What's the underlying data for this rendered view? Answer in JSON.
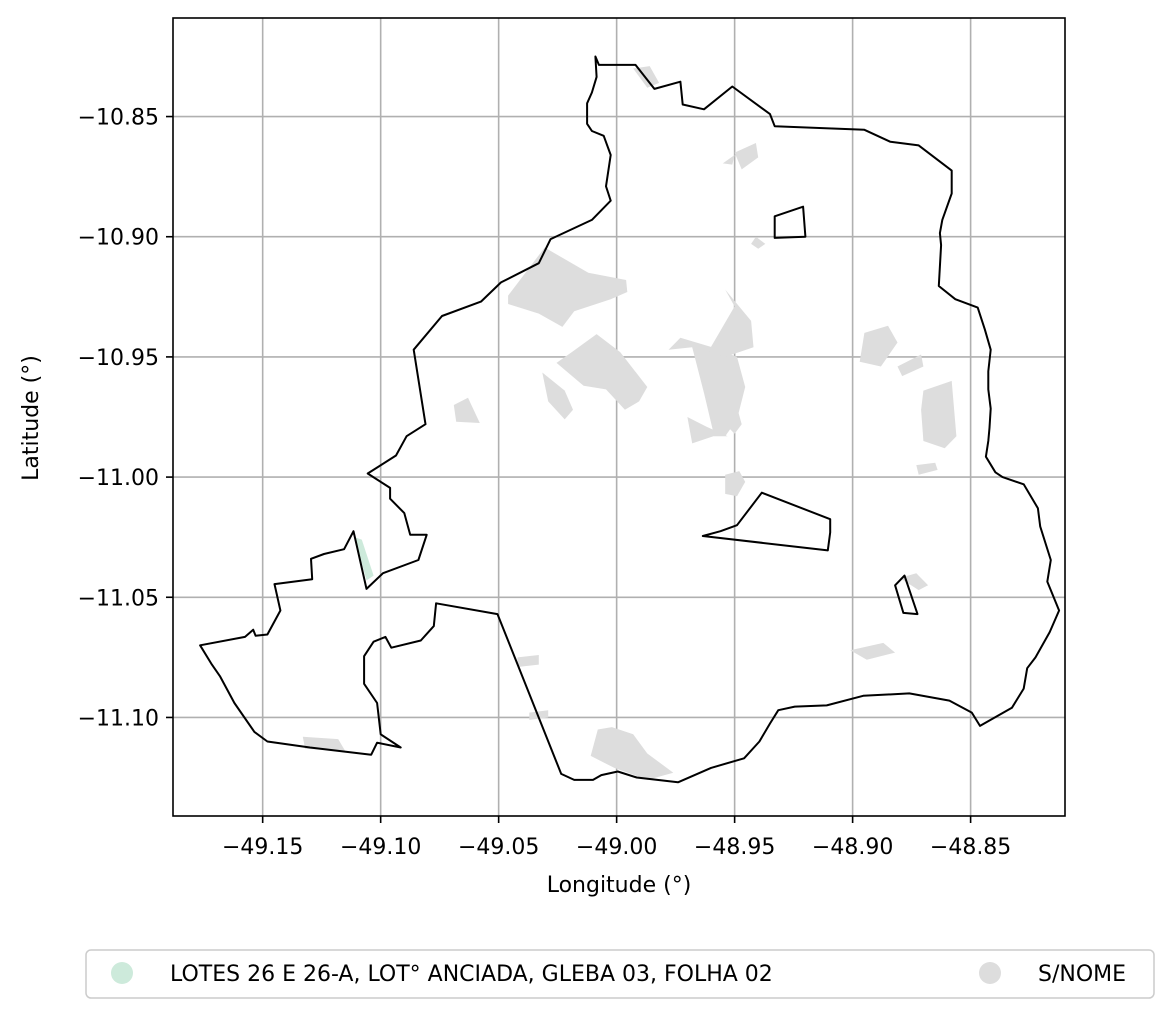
{
  "map": {
    "xlabel": "Longitude (°)",
    "ylabel": "Latitude (°)",
    "xlim": [
      -49.188,
      -48.81
    ],
    "ylim": [
      -11.141,
      -10.809
    ],
    "xticks": [
      {
        "value": -49.15,
        "label": "−49.15"
      },
      {
        "value": -49.1,
        "label": "−49.10"
      },
      {
        "value": -49.05,
        "label": "−49.05"
      },
      {
        "value": -49.0,
        "label": "−49.00"
      },
      {
        "value": -48.95,
        "label": "−48.95"
      },
      {
        "value": -48.9,
        "label": "−48.90"
      },
      {
        "value": -48.85,
        "label": "−48.85"
      }
    ],
    "yticks": [
      {
        "value": -10.85,
        "label": "−10.85"
      },
      {
        "value": -10.9,
        "label": "−10.90"
      },
      {
        "value": -10.95,
        "label": "−10.95"
      },
      {
        "value": -11.0,
        "label": "−11.00"
      },
      {
        "value": -11.05,
        "label": "−11.05"
      },
      {
        "value": -11.1,
        "label": "−11.10"
      }
    ],
    "grid": true,
    "colors": {
      "boundary": "#000000",
      "parcel_gray": "#dddddd",
      "parcel_green": "#cdeadb",
      "grid": "#b0b0b0"
    },
    "legend": {
      "placement": "bottom",
      "items": [
        {
          "label": "LOTES 26 E  26-A, LOT° ANCIADA, GLEBA 03, FOLHA 02",
          "color": "#cdeadb"
        },
        {
          "label": "S/NOME",
          "color": "#dddddd"
        }
      ]
    },
    "boundary": [
      [
        -49.009,
        -10.825
      ],
      [
        -49.0075,
        -10.8285
      ],
      [
        -48.992,
        -10.8285
      ],
      [
        -48.984,
        -10.8385
      ],
      [
        -48.973,
        -10.8355
      ],
      [
        -48.972,
        -10.845
      ],
      [
        -48.963,
        -10.847
      ],
      [
        -48.951,
        -10.8375
      ],
      [
        -48.935,
        -10.849
      ],
      [
        -48.933,
        -10.854
      ],
      [
        -48.895,
        -10.8555
      ],
      [
        -48.884,
        -10.8605
      ],
      [
        -48.872,
        -10.862
      ],
      [
        -48.858,
        -10.8725
      ],
      [
        -48.858,
        -10.882
      ],
      [
        -48.862,
        -10.893
      ],
      [
        -48.863,
        -10.8985
      ],
      [
        -48.8625,
        -10.9035
      ],
      [
        -48.8635,
        -10.9205
      ],
      [
        -48.8565,
        -10.926
      ],
      [
        -48.847,
        -10.9295
      ],
      [
        -48.844,
        -10.9385
      ],
      [
        -48.8415,
        -10.947
      ],
      [
        -48.8425,
        -10.956
      ],
      [
        -48.8425,
        -10.9635
      ],
      [
        -48.8415,
        -10.9715
      ],
      [
        -48.842,
        -10.9795
      ],
      [
        -48.8425,
        -10.985
      ],
      [
        -48.8435,
        -10.9915
      ],
      [
        -48.8395,
        -10.998
      ],
      [
        -48.8365,
        -11.0
      ],
      [
        -48.8275,
        -11.003
      ],
      [
        -48.8215,
        -11.013
      ],
      [
        -48.8205,
        -11.0205
      ],
      [
        -48.816,
        -11.0345
      ],
      [
        -48.8175,
        -11.0435
      ],
      [
        -48.8125,
        -11.0555
      ],
      [
        -48.8165,
        -11.0645
      ],
      [
        -48.8225,
        -11.075
      ],
      [
        -48.826,
        -11.0795
      ],
      [
        -48.8275,
        -11.088
      ],
      [
        -48.8325,
        -11.096
      ],
      [
        -48.846,
        -11.1035
      ],
      [
        -48.8495,
        -11.098
      ],
      [
        -48.859,
        -11.093
      ],
      [
        -48.876,
        -11.09
      ],
      [
        -48.8955,
        -11.091
      ],
      [
        -48.911,
        -11.095
      ],
      [
        -48.9245,
        -11.0955
      ],
      [
        -48.9315,
        -11.097
      ],
      [
        -48.935,
        -11.1025
      ],
      [
        -48.9395,
        -11.11
      ],
      [
        -48.946,
        -11.117
      ],
      [
        -48.96,
        -11.121
      ],
      [
        -48.974,
        -11.127
      ],
      [
        -48.9915,
        -11.125
      ],
      [
        -48.9995,
        -11.1225
      ],
      [
        -49.0065,
        -11.124
      ],
      [
        -49.01,
        -11.126
      ],
      [
        -49.018,
        -11.126
      ],
      [
        -49.0235,
        -11.1235
      ],
      [
        -49.0505,
        -11.057
      ],
      [
        -49.0765,
        -11.0525
      ],
      [
        -49.0775,
        -11.062
      ],
      [
        -49.083,
        -11.068
      ],
      [
        -49.0955,
        -11.071
      ],
      [
        -49.098,
        -11.0665
      ],
      [
        -49.103,
        -11.0685
      ],
      [
        -49.107,
        -11.0745
      ],
      [
        -49.107,
        -11.086
      ],
      [
        -49.1015,
        -11.094
      ],
      [
        -49.1,
        -11.107
      ],
      [
        -49.0915,
        -11.1125
      ],
      [
        -49.1015,
        -11.1105
      ],
      [
        -49.104,
        -11.1155
      ],
      [
        -49.13,
        -11.1125
      ],
      [
        -49.148,
        -11.11
      ],
      [
        -49.1535,
        -11.106
      ],
      [
        -49.162,
        -11.094
      ],
      [
        -49.168,
        -11.083
      ],
      [
        -49.1715,
        -11.078
      ],
      [
        -49.1765,
        -11.07
      ],
      [
        -49.1575,
        -11.0665
      ],
      [
        -49.154,
        -11.0635
      ],
      [
        -49.153,
        -11.066
      ],
      [
        -49.148,
        -11.0655
      ],
      [
        -49.1425,
        -11.0555
      ],
      [
        -49.145,
        -11.0445
      ],
      [
        -49.129,
        -11.0425
      ],
      [
        -49.1295,
        -11.034
      ],
      [
        -49.124,
        -11.032
      ],
      [
        -49.1155,
        -11.03
      ],
      [
        -49.1115,
        -11.0225
      ],
      [
        -49.106,
        -11.0465
      ],
      [
        -49.099,
        -11.04
      ],
      [
        -49.084,
        -11.0345
      ],
      [
        -49.0805,
        -11.024
      ],
      [
        -49.0875,
        -11.024
      ],
      [
        -49.09,
        -11.015
      ],
      [
        -49.096,
        -11.009
      ],
      [
        -49.096,
        -11.0045
      ],
      [
        -49.1055,
        -10.9985
      ],
      [
        -49.0935,
        -10.991
      ],
      [
        -49.089,
        -10.983
      ],
      [
        -49.081,
        -10.978
      ],
      [
        -49.086,
        -10.947
      ],
      [
        -49.074,
        -10.933
      ],
      [
        -49.0575,
        -10.927
      ],
      [
        -49.049,
        -10.919
      ],
      [
        -49.033,
        -10.911
      ],
      [
        -49.028,
        -10.901
      ],
      [
        -49.0105,
        -10.893
      ],
      [
        -49.0025,
        -10.885
      ],
      [
        -49.0045,
        -10.879
      ],
      [
        -49.0025,
        -10.866
      ],
      [
        -49.0055,
        -10.858
      ],
      [
        -49.0105,
        -10.856
      ],
      [
        -49.0125,
        -10.853
      ],
      [
        -49.0125,
        -10.8445
      ],
      [
        -49.0105,
        -10.84
      ],
      [
        -49.0085,
        -10.8335
      ],
      [
        -49.009,
        -10.825
      ]
    ],
    "inner_polygons": [
      [
        [
          -48.933,
          -10.8915
        ],
        [
          -48.921,
          -10.8875
        ],
        [
          -48.92,
          -10.9
        ],
        [
          -48.933,
          -10.9005
        ]
      ],
      [
        [
          -48.9385,
          -11.0065
        ],
        [
          -48.9095,
          -11.0175
        ],
        [
          -48.9095,
          -11.023
        ],
        [
          -48.9105,
          -11.0305
        ],
        [
          -48.9635,
          -11.0245
        ],
        [
          -48.956,
          -11.0225
        ],
        [
          -48.949,
          -11.02
        ]
      ],
      [
        [
          -48.882,
          -11.045
        ],
        [
          -48.878,
          -11.041
        ],
        [
          -48.8725,
          -11.057
        ],
        [
          -48.8785,
          -11.0565
        ]
      ]
    ],
    "parcels_gray": [
      [
        [
          -49.046,
          -10.9245
        ],
        [
          -49.0305,
          -10.9045
        ],
        [
          -49.012,
          -10.915
        ],
        [
          -48.996,
          -10.918
        ],
        [
          -48.9955,
          -10.923
        ],
        [
          -49.0025,
          -10.926
        ],
        [
          -49.018,
          -10.931
        ],
        [
          -49.023,
          -10.9375
        ],
        [
          -49.033,
          -10.932
        ],
        [
          -49.046,
          -10.928
        ]
      ],
      [
        [
          -49.0255,
          -10.9525
        ],
        [
          -49.019,
          -10.948
        ],
        [
          -49.0085,
          -10.9405
        ],
        [
          -48.9985,
          -10.948
        ],
        [
          -48.987,
          -10.9625
        ],
        [
          -48.9905,
          -10.9685
        ],
        [
          -48.9965,
          -10.972
        ],
        [
          -49.0045,
          -10.9635
        ],
        [
          -49.014,
          -10.962
        ]
      ],
      [
        [
          -48.978,
          -10.947
        ],
        [
          -48.968,
          -10.946
        ],
        [
          -48.963,
          -10.965
        ],
        [
          -48.959,
          -10.9815
        ],
        [
          -48.954,
          -10.983
        ],
        [
          -48.949,
          -10.976
        ],
        [
          -48.9455,
          -10.9625
        ],
        [
          -48.949,
          -10.95
        ],
        [
          -48.9595,
          -10.946
        ],
        [
          -48.973,
          -10.942
        ]
      ],
      [
        [
          -48.961,
          -10.9475
        ],
        [
          -48.95,
          -10.929
        ],
        [
          -48.954,
          -10.922
        ],
        [
          -48.943,
          -10.935
        ],
        [
          -48.942,
          -10.946
        ],
        [
          -48.954,
          -10.95
        ]
      ],
      [
        [
          -49.0315,
          -10.9565
        ],
        [
          -49.029,
          -10.9685
        ],
        [
          -49.022,
          -10.976
        ],
        [
          -49.0185,
          -10.972
        ],
        [
          -49.022,
          -10.964
        ]
      ],
      [
        [
          -49.068,
          -10.977
        ],
        [
          -49.058,
          -10.9775
        ],
        [
          -49.063,
          -10.967
        ],
        [
          -49.069,
          -10.97
        ]
      ],
      [
        [
          -48.955,
          -10.97
        ],
        [
          -48.953,
          -10.979
        ],
        [
          -48.95,
          -10.982
        ],
        [
          -48.947,
          -10.978
        ],
        [
          -48.949,
          -10.971
        ]
      ],
      [
        [
          -48.968,
          -10.986
        ],
        [
          -48.959,
          -10.983
        ],
        [
          -48.953,
          -10.983
        ],
        [
          -48.962,
          -10.979
        ],
        [
          -48.97,
          -10.975
        ]
      ],
      [
        [
          -48.94,
          -10.905
        ],
        [
          -48.937,
          -10.903
        ],
        [
          -48.941,
          -10.9
        ],
        [
          -48.943,
          -10.903
        ]
      ],
      [
        [
          -48.895,
          -10.94
        ],
        [
          -48.885,
          -10.937
        ],
        [
          -48.881,
          -10.944
        ],
        [
          -48.888,
          -10.954
        ],
        [
          -48.897,
          -10.952
        ]
      ],
      [
        [
          -48.879,
          -10.958
        ],
        [
          -48.87,
          -10.954
        ],
        [
          -48.871,
          -10.949
        ],
        [
          -48.881,
          -10.954
        ]
      ],
      [
        [
          -48.87,
          -10.964
        ],
        [
          -48.858,
          -10.96
        ],
        [
          -48.856,
          -10.983
        ],
        [
          -48.861,
          -10.988
        ],
        [
          -48.87,
          -10.985
        ],
        [
          -48.871,
          -10.972
        ]
      ],
      [
        [
          -48.873,
          -10.995
        ],
        [
          -48.865,
          -10.994
        ],
        [
          -48.864,
          -10.997
        ],
        [
          -48.872,
          -10.999
        ]
      ],
      [
        [
          -48.954,
          -10.999
        ],
        [
          -48.948,
          -10.9975
        ],
        [
          -48.9455,
          -11.002
        ],
        [
          -48.949,
          -11.008
        ],
        [
          -48.954,
          -11.007
        ]
      ],
      [
        [
          -48.95,
          -10.865
        ],
        [
          -48.941,
          -10.861
        ],
        [
          -48.94,
          -10.867
        ],
        [
          -48.947,
          -10.872
        ]
      ],
      [
        [
          -48.955,
          -10.8695
        ],
        [
          -48.95,
          -10.866
        ],
        [
          -48.951,
          -10.87
        ]
      ],
      [
        [
          -48.88,
          -11.042
        ],
        [
          -48.873,
          -11.04
        ],
        [
          -48.868,
          -11.045
        ],
        [
          -48.872,
          -11.047
        ]
      ],
      [
        [
          -48.901,
          -11.072
        ],
        [
          -48.887,
          -11.069
        ],
        [
          -48.882,
          -11.073
        ],
        [
          -48.894,
          -11.076
        ]
      ],
      [
        [
          -49.008,
          -11.105
        ],
        [
          -49.002,
          -11.104
        ],
        [
          -48.993,
          -11.107
        ],
        [
          -48.987,
          -11.115
        ],
        [
          -48.976,
          -11.123
        ],
        [
          -48.987,
          -11.126
        ],
        [
          -49.001,
          -11.121
        ],
        [
          -49.011,
          -11.116
        ]
      ],
      [
        [
          -49.133,
          -11.108
        ],
        [
          -49.118,
          -11.109
        ],
        [
          -49.115,
          -11.114
        ],
        [
          -49.132,
          -11.113
        ]
      ],
      [
        [
          -49.042,
          -11.075
        ],
        [
          -49.033,
          -11.074
        ],
        [
          -49.033,
          -11.078
        ],
        [
          -49.042,
          -11.079
        ]
      ],
      [
        [
          -49.037,
          -11.098
        ],
        [
          -49.029,
          -11.097
        ],
        [
          -49.029,
          -11.1
        ],
        [
          -49.037,
          -11.101
        ]
      ],
      [
        [
          -48.993,
          -10.83
        ],
        [
          -48.986,
          -10.829
        ],
        [
          -48.982,
          -10.836
        ],
        [
          -48.987,
          -10.838
        ]
      ]
    ],
    "parcels_green": [
      [
        [
          -49.111,
          -11.025
        ],
        [
          -49.106,
          -11.043
        ],
        [
          -49.103,
          -11.041
        ],
        [
          -49.108,
          -11.026
        ]
      ]
    ]
  }
}
